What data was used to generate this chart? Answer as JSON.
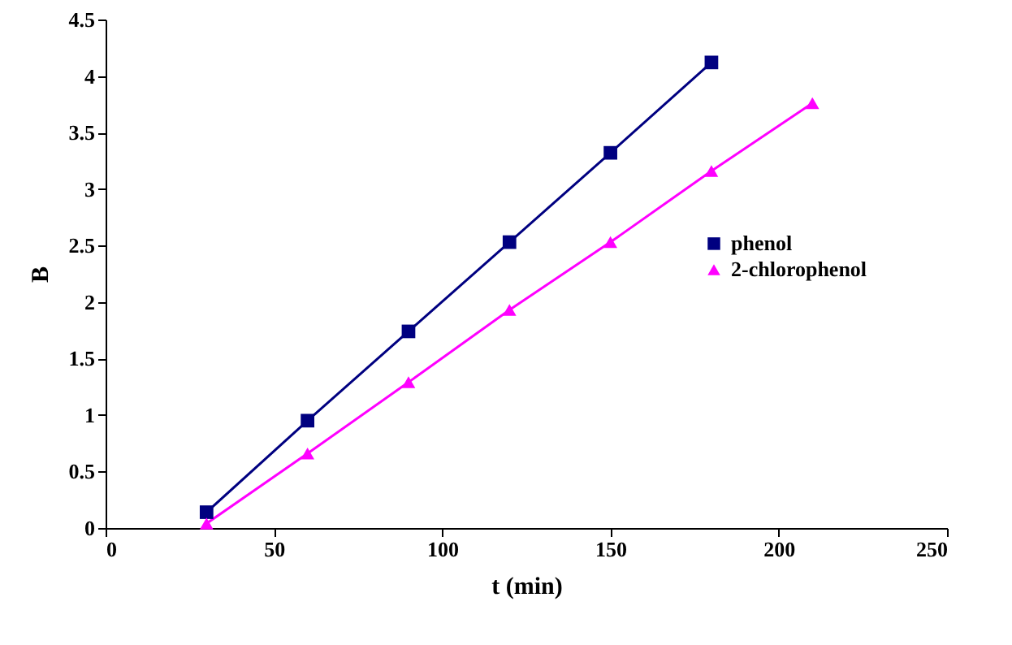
{
  "chart_data": {
    "type": "line",
    "xlabel": "t (min)",
    "ylabel": "B",
    "xlim": [
      0,
      250
    ],
    "xticks": [
      0,
      50,
      100,
      150,
      200,
      250
    ],
    "ylim": [
      0,
      4.5
    ],
    "yticks": [
      0,
      0.5,
      1,
      1.5,
      2,
      2.5,
      3,
      3.5,
      4,
      4.5
    ],
    "grid": false,
    "legend": "right",
    "line_style": "solid",
    "series": [
      {
        "name": "phenol",
        "color": "#000080",
        "marker": "square",
        "x": [
          30,
          60,
          90,
          120,
          150,
          180
        ],
        "values": [
          0.14,
          0.95,
          1.74,
          2.53,
          3.32,
          4.12
        ]
      },
      {
        "name": "2-chlorophenol",
        "color": "#ff00ff",
        "marker": "triangle",
        "x": [
          30,
          60,
          90,
          120,
          150,
          180,
          210
        ],
        "values": [
          0.04,
          0.66,
          1.29,
          1.93,
          2.53,
          3.16,
          3.76
        ]
      }
    ]
  }
}
